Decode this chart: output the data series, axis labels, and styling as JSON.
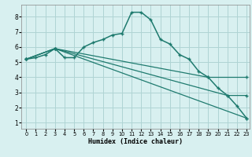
{
  "xlabel": "Humidex (Indice chaleur)",
  "background_color": "#d8f0f0",
  "grid_color": "#afd4d4",
  "line_color": "#1e7a6e",
  "xlim": [
    -0.5,
    23.3
  ],
  "ylim": [
    0.6,
    8.8
  ],
  "x_ticks": [
    0,
    1,
    2,
    3,
    4,
    5,
    6,
    7,
    8,
    9,
    10,
    11,
    12,
    13,
    14,
    15,
    16,
    17,
    18,
    19,
    20,
    21,
    22,
    23
  ],
  "y_ticks": [
    1,
    2,
    3,
    4,
    5,
    6,
    7,
    8
  ],
  "series": [
    {
      "x": [
        0,
        1,
        2,
        3,
        4,
        5,
        6,
        7,
        8,
        9,
        10,
        11,
        12,
        13,
        14,
        15,
        16,
        17,
        18,
        19,
        20,
        21,
        22,
        23
      ],
      "y": [
        5.2,
        5.3,
        5.5,
        5.9,
        5.3,
        5.3,
        6.0,
        6.3,
        6.5,
        6.8,
        6.9,
        8.3,
        8.3,
        7.8,
        6.5,
        6.2,
        5.5,
        5.2,
        4.4,
        4.0,
        3.3,
        2.8,
        2.1,
        1.3
      ]
    },
    {
      "x": [
        0,
        3,
        19,
        23
      ],
      "y": [
        5.2,
        5.9,
        4.0,
        4.0
      ]
    },
    {
      "x": [
        0,
        3,
        21,
        23
      ],
      "y": [
        5.2,
        5.9,
        2.8,
        2.8
      ]
    },
    {
      "x": [
        0,
        3,
        23
      ],
      "y": [
        5.2,
        5.9,
        1.3
      ]
    }
  ]
}
